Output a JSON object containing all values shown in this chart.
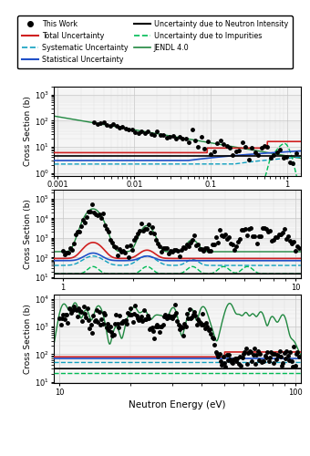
{
  "legend": {
    "this_work": {
      "label": "This Work",
      "color": "black",
      "marker": "o",
      "ms": 3
    },
    "total_unc": {
      "label": "Total Uncertainty",
      "color": "#d02020",
      "lw": 1.2
    },
    "stat_unc": {
      "label": "Statistical Uncertainty",
      "color": "#2050c8",
      "lw": 1.2
    },
    "syst_unc": {
      "label": "Systematic Uncertainty",
      "color": "#10a0c0",
      "ls": "--",
      "lw": 1.0
    },
    "neutron_int": {
      "label": "Uncertainty due to Neutron Intensity",
      "color": "black",
      "lw": 1.2
    },
    "impurity": {
      "label": "Uncertainty due to Impurities",
      "color": "#00bb55",
      "ls": "--",
      "lw": 1.0
    },
    "jendl": {
      "label": "JENDL 4.0",
      "color": "#208840",
      "lw": 1.0
    }
  },
  "panel1": {
    "xmin": 0.0009,
    "xmax": 1.5,
    "ymin": 0.8,
    "ymax": 2000,
    "xticks": [
      0.001,
      0.01,
      0.1,
      1
    ],
    "xticklabels": [
      "0.001",
      "0.01",
      "0.1",
      "1"
    ],
    "ylabel": "Cross Section (b)"
  },
  "panel2": {
    "xmin": 0.92,
    "xmax": 10.5,
    "ymin": 9,
    "ymax": 300000,
    "xticks": [
      1,
      10
    ],
    "xticklabels": [
      "1",
      "10"
    ],
    "ylabel": "Cross Section (b)"
  },
  "panel3": {
    "xmin": 9.5,
    "xmax": 105,
    "ymin": 9,
    "ymax": 15000,
    "xticks": [
      10,
      100
    ],
    "xticklabels": [
      "10",
      "100"
    ],
    "ylabel": "Cross Section (b)",
    "xlabel": "Neutron Energy (eV)"
  },
  "fig_bg": "#ffffff",
  "grid_color": "#bbbbbb",
  "grid_lw": 0.4
}
